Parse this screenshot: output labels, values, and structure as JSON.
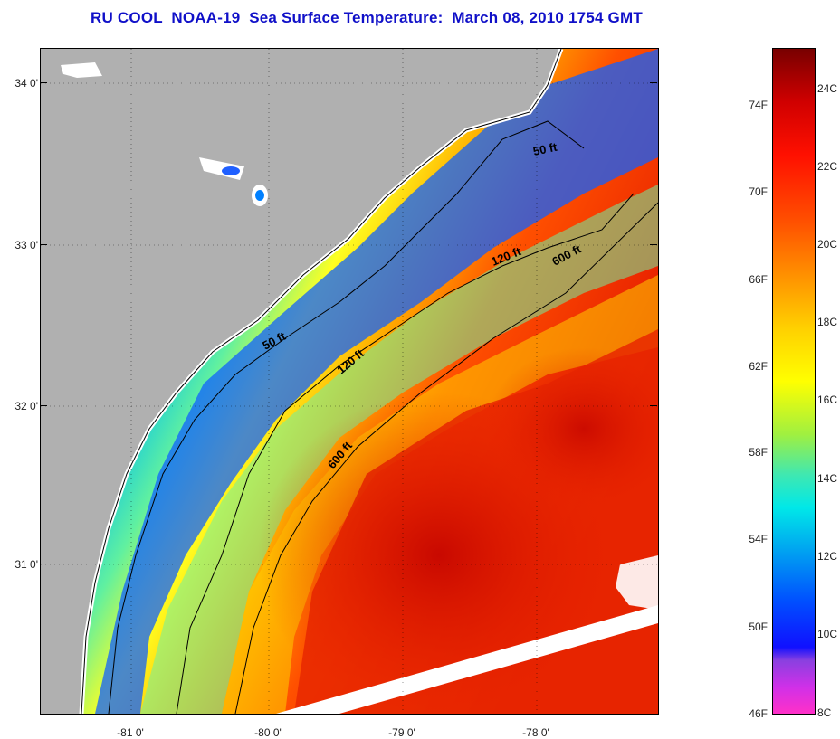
{
  "title": "RU COOL  NOAA-19  Sea Surface Temperature:  March 08, 2010 1754 GMT",
  "map": {
    "latitude_labels": [
      "34 0'",
      "33 0'",
      "32 0'",
      "31 0'"
    ],
    "longitude_labels": [
      "-81 0'",
      "-80 0'",
      "-79 0'",
      "-78 0'"
    ],
    "contour_labels": [
      "50 ft",
      "50 ft",
      "120 ft",
      "120 ft",
      "600 ft",
      "600 ft"
    ],
    "colors": {
      "land": "#b0b0b0",
      "cloud": "#ffffff",
      "isobath": "#000000"
    }
  },
  "colorbar": {
    "fahrenheit_labels": [
      "74F",
      "70F",
      "66F",
      "62F",
      "58F",
      "54F",
      "50F",
      "46F"
    ],
    "celsius_labels": [
      "24C",
      "22C",
      "20C",
      "18C",
      "16C",
      "14C",
      "12C",
      "10C",
      "8C"
    ],
    "colors": [
      "#ff30c8",
      "#1010ff",
      "#00e8e8",
      "#ffff00",
      "#ff5000",
      "#780000"
    ]
  }
}
